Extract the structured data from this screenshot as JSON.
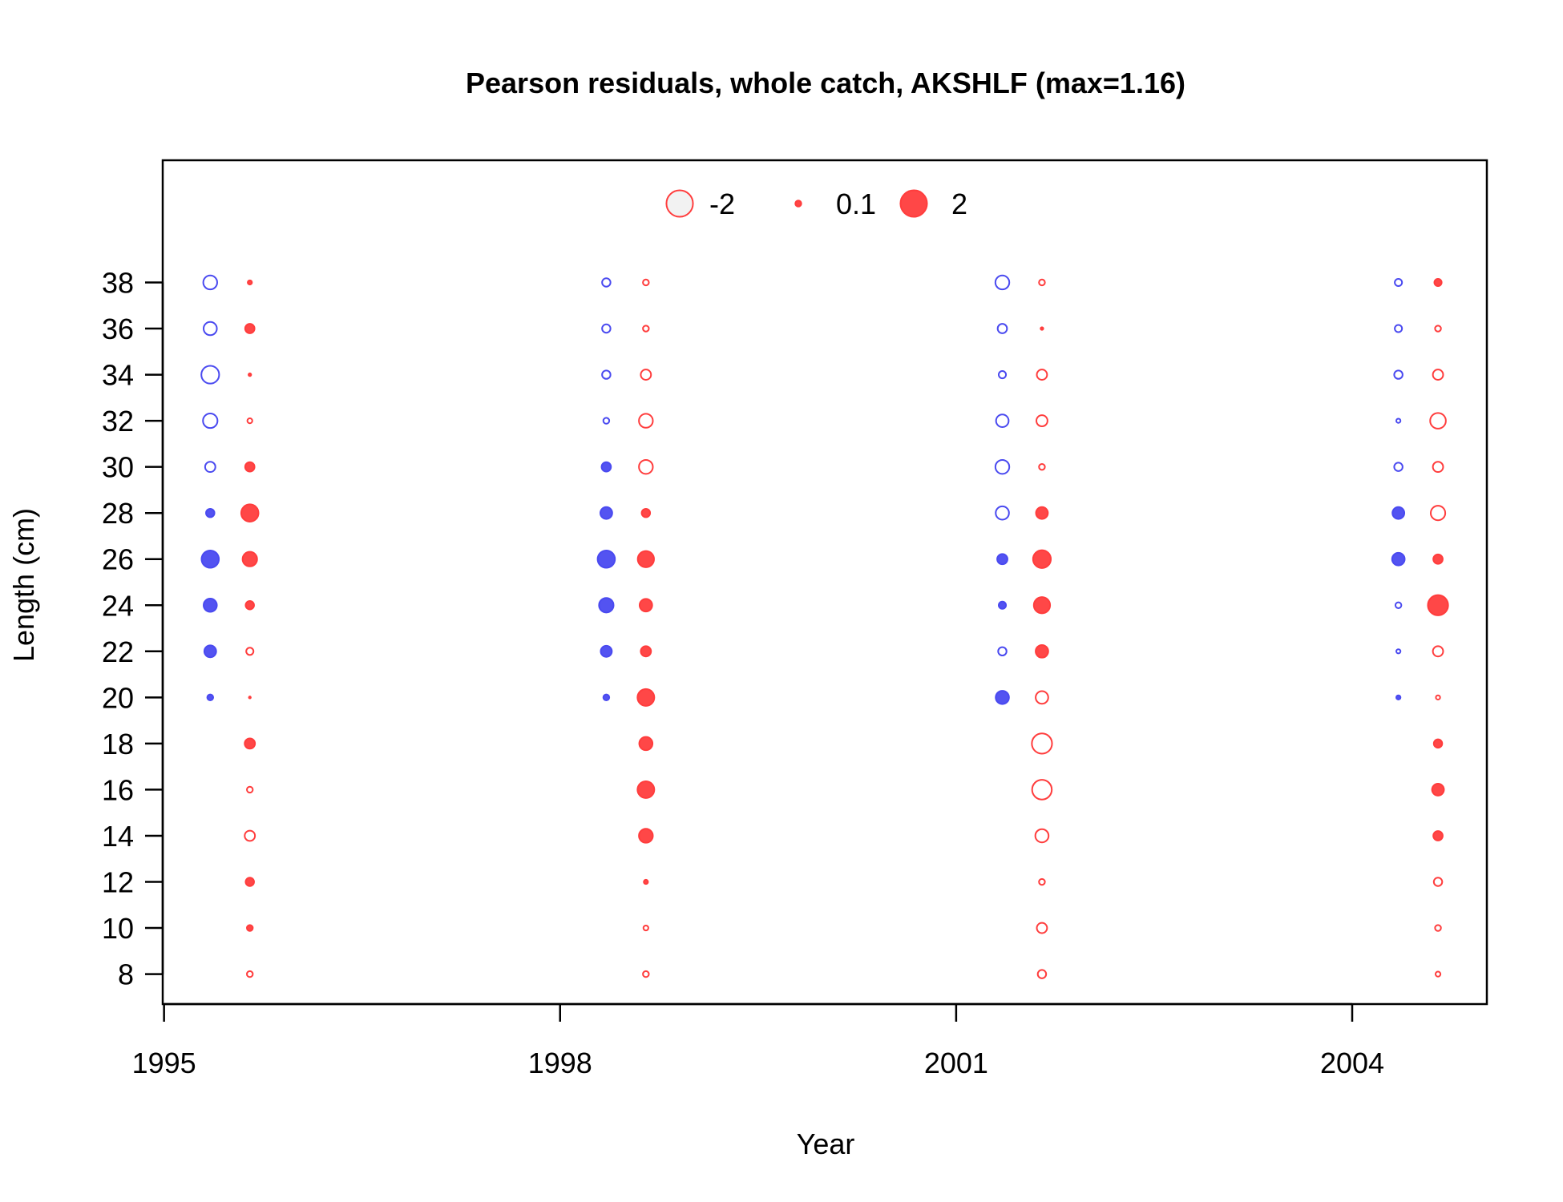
{
  "chart_data": {
    "type": "scatter",
    "title": "Pearson residuals, whole catch, AKSHLF (max=1.16)",
    "xlabel": "Year",
    "ylabel": "Length (cm)",
    "xlim": [
      1994.99,
      2005.02
    ],
    "ylim": [
      6.7,
      43.3
    ],
    "xticks": [
      1995,
      1998,
      2001,
      2004
    ],
    "yticks": [
      8,
      10,
      12,
      14,
      16,
      18,
      20,
      22,
      24,
      26,
      28,
      30,
      32,
      34,
      36,
      38
    ],
    "legend": {
      "position": "top-center",
      "entries": [
        {
          "label": "-2",
          "value": -2
        },
        {
          "label": "0.1",
          "value": 0.1
        },
        {
          "label": "2",
          "value": 2
        }
      ]
    },
    "colors": {
      "positive": "#ff3d3d",
      "negative": "#4a4af0",
      "legend_negative_fill": "#f2f2f2"
    },
    "series": [
      {
        "sex": "female",
        "points": [
          {
            "x": 1995.35,
            "y": 38,
            "r": -0.55
          },
          {
            "x": 1995.35,
            "y": 36,
            "r": -0.5
          },
          {
            "x": 1995.35,
            "y": 34,
            "r": -0.9
          },
          {
            "x": 1995.35,
            "y": 32,
            "r": -0.6
          },
          {
            "x": 1995.35,
            "y": 30,
            "r": -0.3
          },
          {
            "x": 1995.35,
            "y": 28,
            "r": 0.2
          },
          {
            "x": 1995.35,
            "y": 26,
            "r": 0.85
          },
          {
            "x": 1995.35,
            "y": 24,
            "r": 0.5
          },
          {
            "x": 1995.35,
            "y": 22,
            "r": 0.4
          },
          {
            "x": 1995.35,
            "y": 20,
            "r": 0.1
          },
          {
            "x": 1998.35,
            "y": 38,
            "r": -0.2
          },
          {
            "x": 1998.35,
            "y": 36,
            "r": -0.2
          },
          {
            "x": 1998.35,
            "y": 34,
            "r": -0.2
          },
          {
            "x": 1998.35,
            "y": 32,
            "r": -0.1
          },
          {
            "x": 1998.35,
            "y": 30,
            "r": 0.25
          },
          {
            "x": 1998.35,
            "y": 28,
            "r": 0.4
          },
          {
            "x": 1998.35,
            "y": 26,
            "r": 0.85
          },
          {
            "x": 1998.35,
            "y": 24,
            "r": 0.6
          },
          {
            "x": 1998.35,
            "y": 22,
            "r": 0.35
          },
          {
            "x": 1998.35,
            "y": 20,
            "r": 0.1
          },
          {
            "x": 2001.35,
            "y": 38,
            "r": -0.55
          },
          {
            "x": 2001.35,
            "y": 36,
            "r": -0.25
          },
          {
            "x": 2001.35,
            "y": 34,
            "r": -0.15
          },
          {
            "x": 2001.35,
            "y": 32,
            "r": -0.45
          },
          {
            "x": 2001.35,
            "y": 30,
            "r": -0.55
          },
          {
            "x": 2001.35,
            "y": 28,
            "r": -0.5
          },
          {
            "x": 2001.35,
            "y": 26,
            "r": 0.3
          },
          {
            "x": 2001.35,
            "y": 24,
            "r": 0.15
          },
          {
            "x": 2001.35,
            "y": 22,
            "r": -0.2
          },
          {
            "x": 2001.35,
            "y": 20,
            "r": 0.5
          },
          {
            "x": 2004.35,
            "y": 38,
            "r": -0.15
          },
          {
            "x": 2004.35,
            "y": 36,
            "r": -0.15
          },
          {
            "x": 2004.35,
            "y": 34,
            "r": -0.2
          },
          {
            "x": 2004.35,
            "y": 32,
            "r": -0.05
          },
          {
            "x": 2004.35,
            "y": 30,
            "r": -0.2
          },
          {
            "x": 2004.35,
            "y": 28,
            "r": 0.4
          },
          {
            "x": 2004.35,
            "y": 26,
            "r": 0.45
          },
          {
            "x": 2004.35,
            "y": 24,
            "r": -0.1
          },
          {
            "x": 2004.35,
            "y": 22,
            "r": -0.05
          },
          {
            "x": 2004.35,
            "y": 20,
            "r": 0.05
          }
        ]
      },
      {
        "sex": "male",
        "points": [
          {
            "x": 1995.65,
            "y": 38,
            "r": 0.05
          },
          {
            "x": 1995.65,
            "y": 36,
            "r": 0.25
          },
          {
            "x": 1995.65,
            "y": 34,
            "r": 0.02
          },
          {
            "x": 1995.65,
            "y": 32,
            "r": -0.07
          },
          {
            "x": 1995.65,
            "y": 30,
            "r": 0.25
          },
          {
            "x": 1995.65,
            "y": 28,
            "r": 0.85
          },
          {
            "x": 1995.65,
            "y": 26,
            "r": 0.6
          },
          {
            "x": 1995.65,
            "y": 24,
            "r": 0.2
          },
          {
            "x": 1995.65,
            "y": 22,
            "r": -0.15
          },
          {
            "x": 1995.65,
            "y": 20,
            "r": 0.01
          },
          {
            "x": 1995.65,
            "y": 18,
            "r": 0.3
          },
          {
            "x": 1995.65,
            "y": 16,
            "r": -0.1
          },
          {
            "x": 1995.65,
            "y": 14,
            "r": -0.3
          },
          {
            "x": 1995.65,
            "y": 12,
            "r": 0.2
          },
          {
            "x": 1995.65,
            "y": 10,
            "r": 0.1
          },
          {
            "x": 1995.65,
            "y": 8,
            "r": -0.1
          },
          {
            "x": 1998.65,
            "y": 38,
            "r": -0.1
          },
          {
            "x": 1998.65,
            "y": 36,
            "r": -0.1
          },
          {
            "x": 1998.65,
            "y": 34,
            "r": -0.3
          },
          {
            "x": 1998.65,
            "y": 32,
            "r": -0.55
          },
          {
            "x": 1998.65,
            "y": 30,
            "r": -0.55
          },
          {
            "x": 1998.65,
            "y": 28,
            "r": 0.2
          },
          {
            "x": 1998.65,
            "y": 26,
            "r": 0.75
          },
          {
            "x": 1998.65,
            "y": 24,
            "r": 0.45
          },
          {
            "x": 1998.65,
            "y": 22,
            "r": 0.3
          },
          {
            "x": 1998.65,
            "y": 20,
            "r": 0.8
          },
          {
            "x": 1998.65,
            "y": 18,
            "r": 0.5
          },
          {
            "x": 1998.65,
            "y": 16,
            "r": 0.8
          },
          {
            "x": 1998.65,
            "y": 14,
            "r": 0.55
          },
          {
            "x": 1998.65,
            "y": 12,
            "r": 0.05
          },
          {
            "x": 1998.65,
            "y": 10,
            "r": -0.07
          },
          {
            "x": 1998.65,
            "y": 8,
            "r": -0.1
          },
          {
            "x": 2001.65,
            "y": 38,
            "r": -0.1
          },
          {
            "x": 2001.65,
            "y": 36,
            "r": 0.02
          },
          {
            "x": 2001.65,
            "y": 34,
            "r": -0.3
          },
          {
            "x": 2001.65,
            "y": 32,
            "r": -0.35
          },
          {
            "x": 2001.65,
            "y": 30,
            "r": -0.1
          },
          {
            "x": 2001.65,
            "y": 28,
            "r": 0.4
          },
          {
            "x": 2001.65,
            "y": 26,
            "r": 0.9
          },
          {
            "x": 2001.65,
            "y": 24,
            "r": 0.75
          },
          {
            "x": 2001.65,
            "y": 22,
            "r": 0.45
          },
          {
            "x": 2001.65,
            "y": 20,
            "r": -0.45
          },
          {
            "x": 2001.65,
            "y": 18,
            "r": -1.16
          },
          {
            "x": 2001.65,
            "y": 16,
            "r": -1.1
          },
          {
            "x": 2001.65,
            "y": 14,
            "r": -0.5
          },
          {
            "x": 2001.65,
            "y": 12,
            "r": -0.1
          },
          {
            "x": 2001.65,
            "y": 10,
            "r": -0.3
          },
          {
            "x": 2001.65,
            "y": 8,
            "r": -0.2
          },
          {
            "x": 2004.65,
            "y": 38,
            "r": 0.15
          },
          {
            "x": 2004.65,
            "y": 36,
            "r": -0.1
          },
          {
            "x": 2004.65,
            "y": 34,
            "r": -0.3
          },
          {
            "x": 2004.65,
            "y": 32,
            "r": -0.7
          },
          {
            "x": 2004.65,
            "y": 30,
            "r": -0.3
          },
          {
            "x": 2004.65,
            "y": 28,
            "r": -0.6
          },
          {
            "x": 2004.65,
            "y": 26,
            "r": 0.25
          },
          {
            "x": 2004.65,
            "y": 24,
            "r": 1.16
          },
          {
            "x": 2004.65,
            "y": 22,
            "r": -0.3
          },
          {
            "x": 2004.65,
            "y": 20,
            "r": -0.05
          },
          {
            "x": 2004.65,
            "y": 18,
            "r": 0.2
          },
          {
            "x": 2004.65,
            "y": 16,
            "r": 0.4
          },
          {
            "x": 2004.65,
            "y": 14,
            "r": 0.25
          },
          {
            "x": 2004.65,
            "y": 12,
            "r": -0.2
          },
          {
            "x": 2004.65,
            "y": 10,
            "r": -0.1
          },
          {
            "x": 2004.65,
            "y": 8,
            "r": -0.07
          }
        ]
      }
    ]
  }
}
